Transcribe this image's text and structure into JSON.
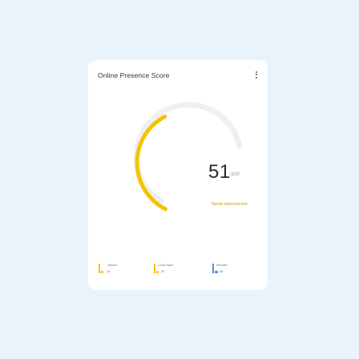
{
  "card": {
    "title": "Online Presence Score",
    "menu_icon": "more-vertical-icon"
  },
  "score": {
    "value": "51",
    "max": "/100",
    "fraction": 0.51,
    "status": "Needs improvement",
    "colors": {
      "arc": "#f5c400",
      "track": "#eef0f2"
    }
  },
  "metrics": [
    {
      "label": "Search",
      "value": "18",
      "color": "#f5c400"
    },
    {
      "label": "Local Rank",
      "value": "30",
      "color": "#f5c400"
    },
    {
      "label": "Website",
      "value": "58",
      "color": "#4a90d9"
    }
  ]
}
